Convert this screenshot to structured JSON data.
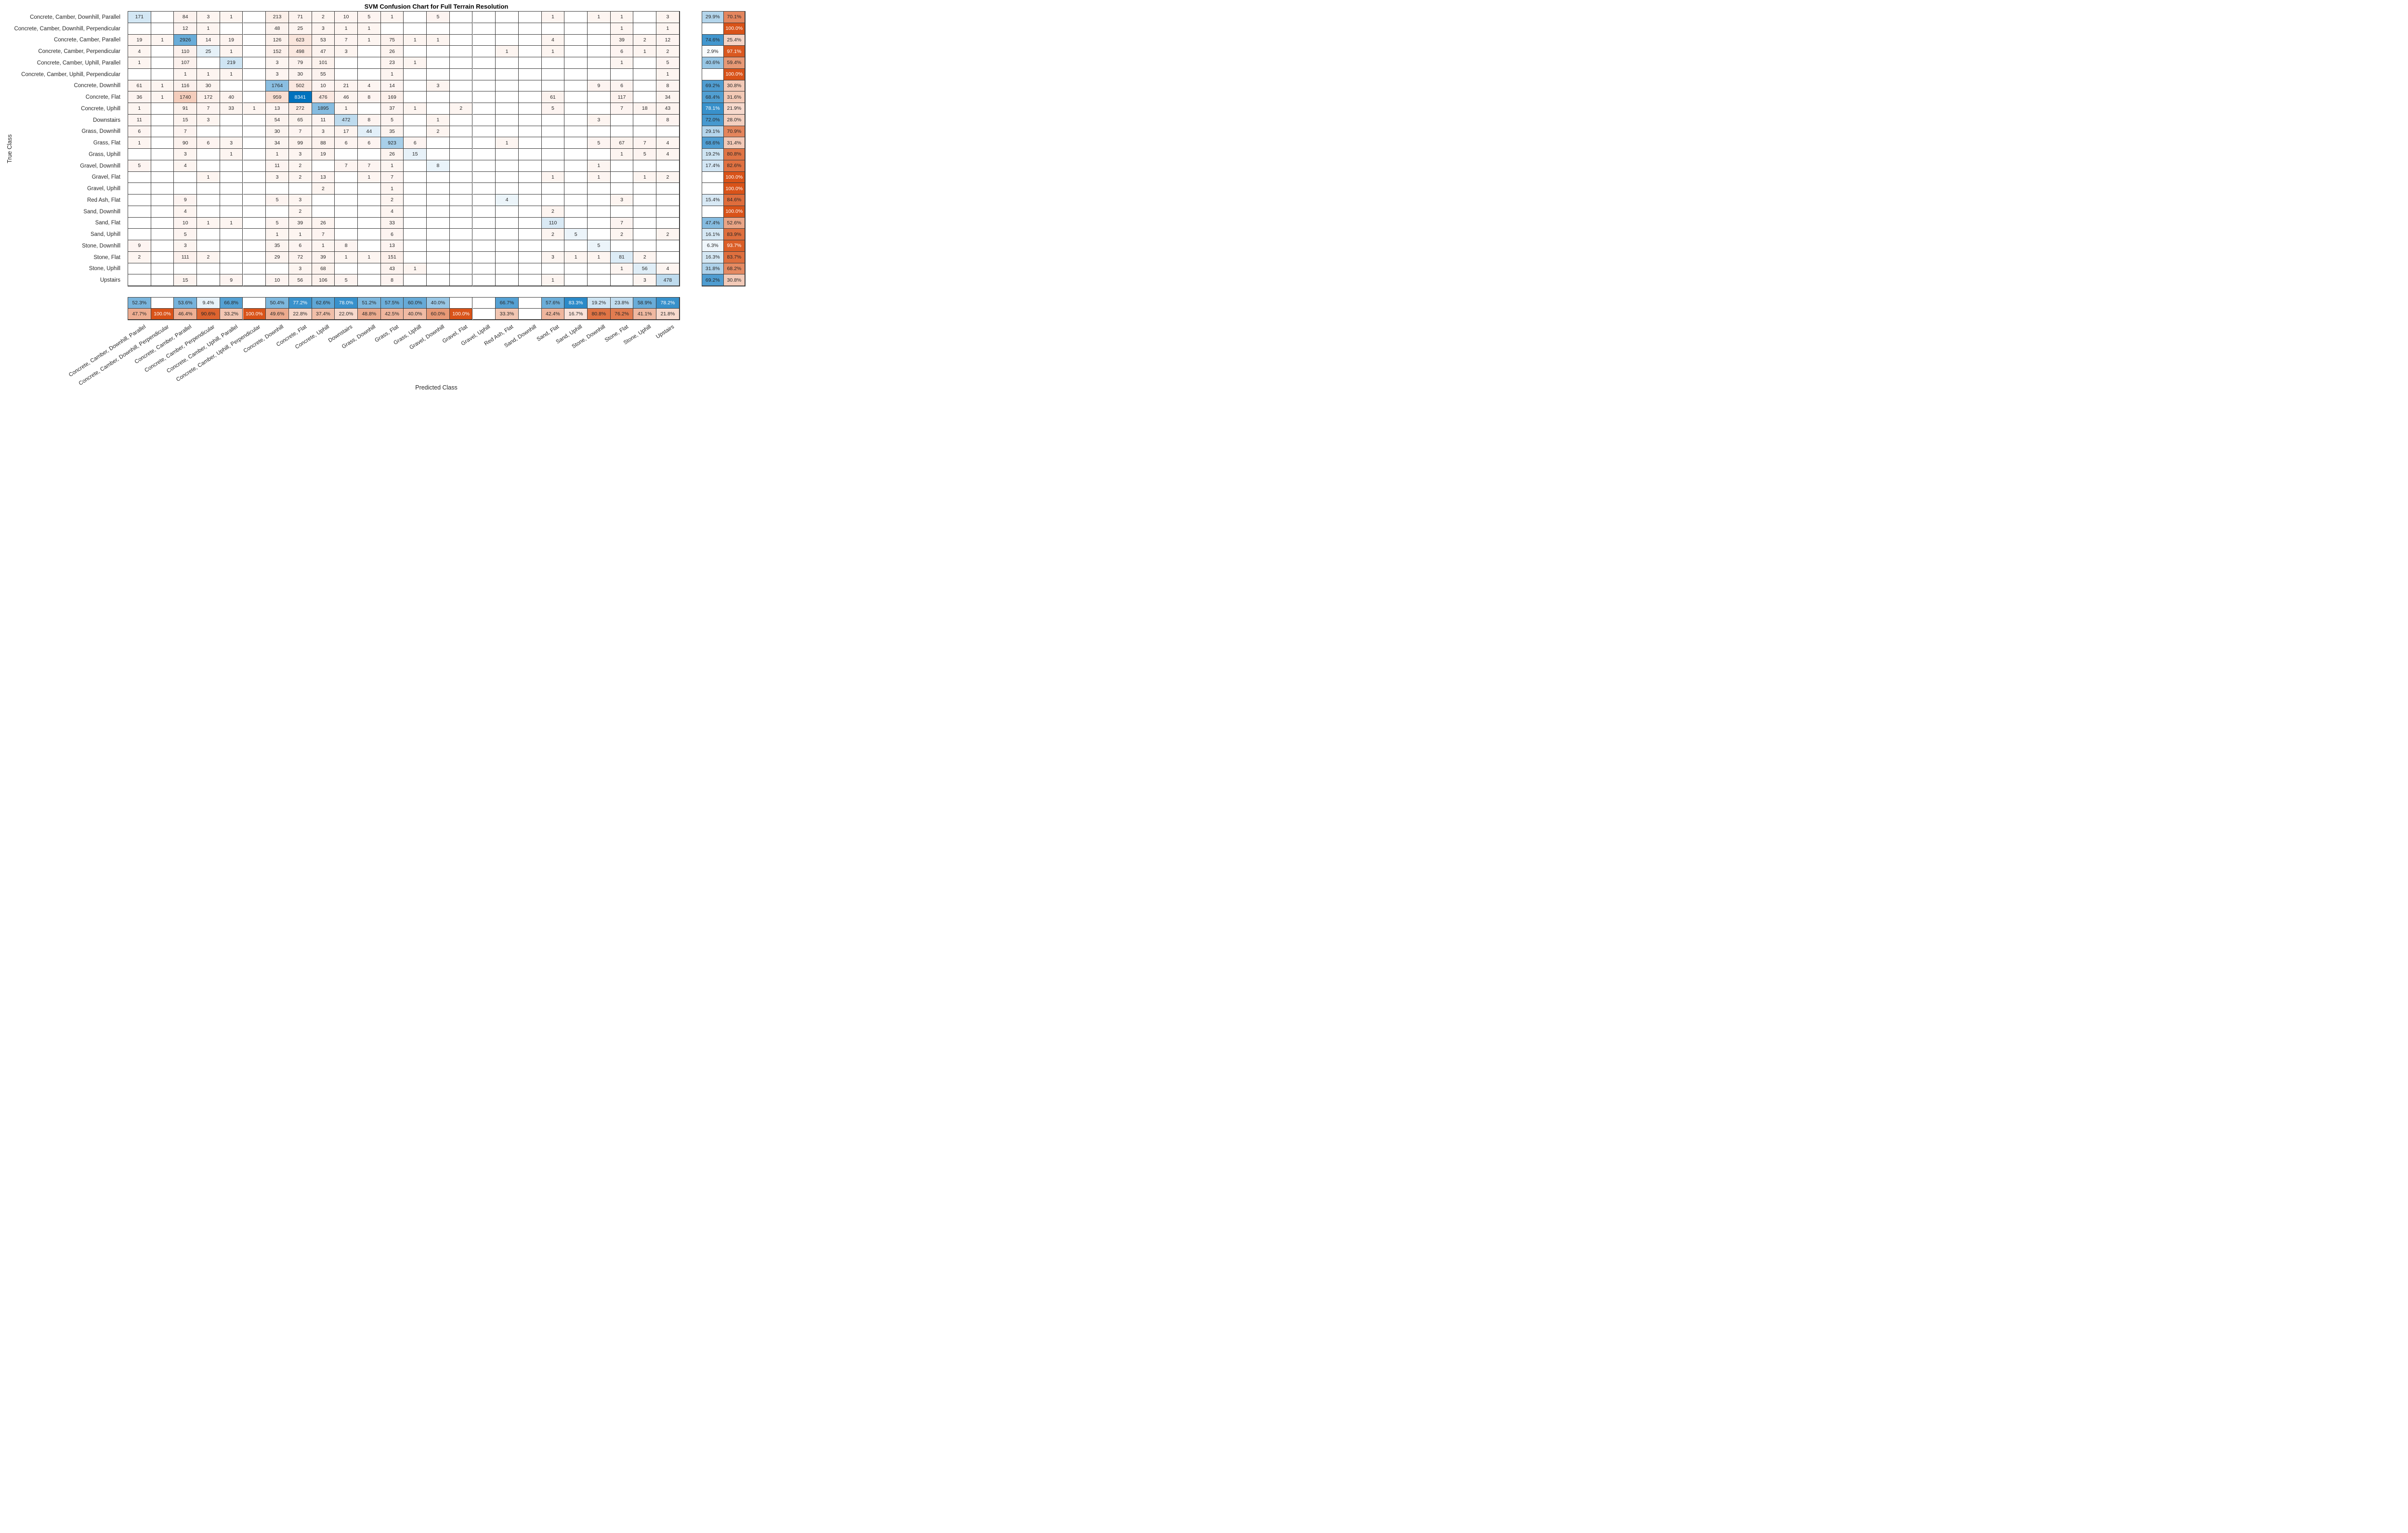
{
  "chart_data": {
    "type": "heatmap",
    "subtype": "confusion-matrix",
    "title": "SVM Confusion Chart for Full Terrain Resolution",
    "xlabel": "Predicted Class",
    "ylabel": "True Class",
    "legend": "none",
    "grid": "on",
    "max_value": 8341,
    "colors": {
      "diagonal": "#0072BD",
      "off_diagonal": "#D95319",
      "grid_line": "#3c3c3c",
      "background": "#ffffff",
      "dark_text": "#262626",
      "light_text": "#ffffff"
    },
    "classes": [
      "Concrete, Camber, Downhill, Parallel",
      "Concrete, Camber, Downhill, Perpendicular",
      "Concrete, Camber, Parallel",
      "Concrete, Camber, Perpendicular",
      "Concrete, Camber, Uphill, Parallel",
      "Concrete, Camber, Uphill, Perpendicular",
      "Concrete, Downhill",
      "Concrete, Flat",
      "Concrete, Uphill",
      "Downstairs",
      "Grass, Downhill",
      "Grass, Flat",
      "Grass, Uphill",
      "Gravel, Downhill",
      "Gravel, Flat",
      "Gravel, Uphill",
      "Red Ash, Flat",
      "Sand, Downhill",
      "Sand, Flat",
      "Sand, Uphill",
      "Stone, Downhill",
      "Stone, Flat",
      "Stone, Uphill",
      "Upstairs"
    ],
    "matrix": [
      [
        171,
        0,
        84,
        3,
        1,
        0,
        213,
        71,
        2,
        10,
        5,
        1,
        0,
        5,
        0,
        0,
        0,
        0,
        1,
        0,
        1,
        1,
        0,
        3
      ],
      [
        0,
        0,
        12,
        1,
        0,
        0,
        48,
        25,
        3,
        1,
        1,
        0,
        0,
        0,
        0,
        0,
        0,
        0,
        0,
        0,
        0,
        1,
        0,
        1
      ],
      [
        19,
        1,
        2926,
        14,
        19,
        0,
        126,
        623,
        53,
        7,
        1,
        75,
        1,
        1,
        0,
        0,
        0,
        0,
        4,
        0,
        0,
        39,
        2,
        12
      ],
      [
        4,
        0,
        110,
        25,
        1,
        0,
        152,
        498,
        47,
        3,
        0,
        26,
        0,
        0,
        0,
        0,
        1,
        0,
        1,
        0,
        0,
        6,
        1,
        2
      ],
      [
        1,
        0,
        107,
        0,
        219,
        0,
        3,
        79,
        101,
        0,
        0,
        23,
        1,
        0,
        0,
        0,
        0,
        0,
        0,
        0,
        0,
        1,
        0,
        5
      ],
      [
        0,
        0,
        1,
        1,
        1,
        0,
        3,
        30,
        55,
        0,
        0,
        1,
        0,
        0,
        0,
        0,
        0,
        0,
        0,
        0,
        0,
        0,
        0,
        1
      ],
      [
        61,
        1,
        116,
        30,
        0,
        0,
        1764,
        502,
        10,
        21,
        4,
        14,
        0,
        3,
        0,
        0,
        0,
        0,
        0,
        0,
        9,
        6,
        0,
        8
      ],
      [
        36,
        1,
        1740,
        172,
        40,
        0,
        959,
        8341,
        476,
        46,
        8,
        169,
        0,
        0,
        0,
        0,
        0,
        0,
        61,
        0,
        0,
        117,
        0,
        34
      ],
      [
        1,
        0,
        91,
        7,
        33,
        1,
        13,
        272,
        1895,
        1,
        0,
        37,
        1,
        0,
        2,
        0,
        0,
        0,
        5,
        0,
        0,
        7,
        18,
        43
      ],
      [
        11,
        0,
        15,
        3,
        0,
        0,
        54,
        65,
        11,
        472,
        8,
        5,
        0,
        1,
        0,
        0,
        0,
        0,
        0,
        0,
        3,
        0,
        0,
        8
      ],
      [
        6,
        0,
        7,
        0,
        0,
        0,
        30,
        7,
        3,
        17,
        44,
        35,
        0,
        2,
        0,
        0,
        0,
        0,
        0,
        0,
        0,
        0,
        0,
        0
      ],
      [
        1,
        0,
        90,
        6,
        3,
        0,
        34,
        99,
        88,
        6,
        6,
        923,
        6,
        0,
        0,
        0,
        1,
        0,
        0,
        0,
        5,
        67,
        7,
        4
      ],
      [
        0,
        0,
        3,
        0,
        1,
        0,
        1,
        3,
        19,
        0,
        0,
        26,
        15,
        0,
        0,
        0,
        0,
        0,
        0,
        0,
        0,
        1,
        5,
        4
      ],
      [
        5,
        0,
        4,
        0,
        0,
        0,
        11,
        2,
        0,
        7,
        7,
        1,
        0,
        8,
        0,
        0,
        0,
        0,
        0,
        0,
        1,
        0,
        0,
        0
      ],
      [
        0,
        0,
        0,
        1,
        0,
        0,
        3,
        2,
        13,
        0,
        1,
        7,
        0,
        0,
        0,
        0,
        0,
        0,
        1,
        0,
        1,
        0,
        1,
        2
      ],
      [
        0,
        0,
        0,
        0,
        0,
        0,
        0,
        0,
        2,
        0,
        0,
        1,
        0,
        0,
        0,
        0,
        0,
        0,
        0,
        0,
        0,
        0,
        0,
        0
      ],
      [
        0,
        0,
        9,
        0,
        0,
        0,
        5,
        3,
        0,
        0,
        0,
        2,
        0,
        0,
        0,
        0,
        4,
        0,
        0,
        0,
        0,
        3,
        0,
        0
      ],
      [
        0,
        0,
        4,
        0,
        0,
        0,
        0,
        2,
        0,
        0,
        0,
        4,
        0,
        0,
        0,
        0,
        0,
        0,
        2,
        0,
        0,
        0,
        0,
        0
      ],
      [
        0,
        0,
        10,
        1,
        1,
        0,
        5,
        39,
        26,
        0,
        0,
        33,
        0,
        0,
        0,
        0,
        0,
        0,
        110,
        0,
        0,
        7,
        0,
        0
      ],
      [
        0,
        0,
        5,
        0,
        0,
        0,
        1,
        1,
        7,
        0,
        0,
        6,
        0,
        0,
        0,
        0,
        0,
        0,
        2,
        5,
        0,
        2,
        0,
        2
      ],
      [
        9,
        0,
        3,
        0,
        0,
        0,
        35,
        6,
        1,
        8,
        0,
        13,
        0,
        0,
        0,
        0,
        0,
        0,
        0,
        0,
        5,
        0,
        0,
        0
      ],
      [
        2,
        0,
        111,
        2,
        0,
        0,
        29,
        72,
        39,
        1,
        1,
        151,
        0,
        0,
        0,
        0,
        0,
        0,
        3,
        1,
        1,
        81,
        2,
        0
      ],
      [
        0,
        0,
        0,
        0,
        0,
        0,
        0,
        3,
        68,
        0,
        0,
        43,
        1,
        0,
        0,
        0,
        0,
        0,
        0,
        0,
        0,
        1,
        56,
        4
      ],
      [
        0,
        0,
        15,
        0,
        9,
        0,
        10,
        56,
        106,
        5,
        0,
        8,
        0,
        0,
        0,
        0,
        0,
        0,
        1,
        0,
        0,
        0,
        3,
        478
      ]
    ],
    "row_summary": {
      "recall_pct": [
        29.9,
        null,
        74.6,
        2.9,
        40.6,
        null,
        69.2,
        68.4,
        78.1,
        72.0,
        29.1,
        68.6,
        19.2,
        17.4,
        null,
        null,
        15.4,
        null,
        47.4,
        16.1,
        6.3,
        16.3,
        31.8,
        69.2
      ],
      "miss_rate_pct": [
        70.1,
        100.0,
        25.4,
        97.1,
        59.4,
        100.0,
        30.8,
        31.6,
        21.9,
        28.0,
        70.9,
        31.4,
        80.8,
        82.6,
        100.0,
        100.0,
        84.6,
        100.0,
        52.6,
        83.9,
        93.7,
        83.7,
        68.2,
        30.8
      ]
    },
    "col_summary": {
      "precision_pct": [
        52.3,
        null,
        53.6,
        9.4,
        66.8,
        null,
        50.4,
        77.2,
        62.6,
        78.0,
        51.2,
        57.5,
        60.0,
        40.0,
        null,
        null,
        66.7,
        null,
        57.6,
        83.3,
        19.2,
        23.8,
        58.9,
        78.2
      ],
      "fdr_pct": [
        47.7,
        100.0,
        46.4,
        90.6,
        33.2,
        100.0,
        49.6,
        22.8,
        37.4,
        22.0,
        48.8,
        42.5,
        40.0,
        60.0,
        100.0,
        null,
        33.3,
        null,
        42.4,
        16.7,
        80.8,
        76.2,
        41.1,
        21.8
      ]
    }
  }
}
